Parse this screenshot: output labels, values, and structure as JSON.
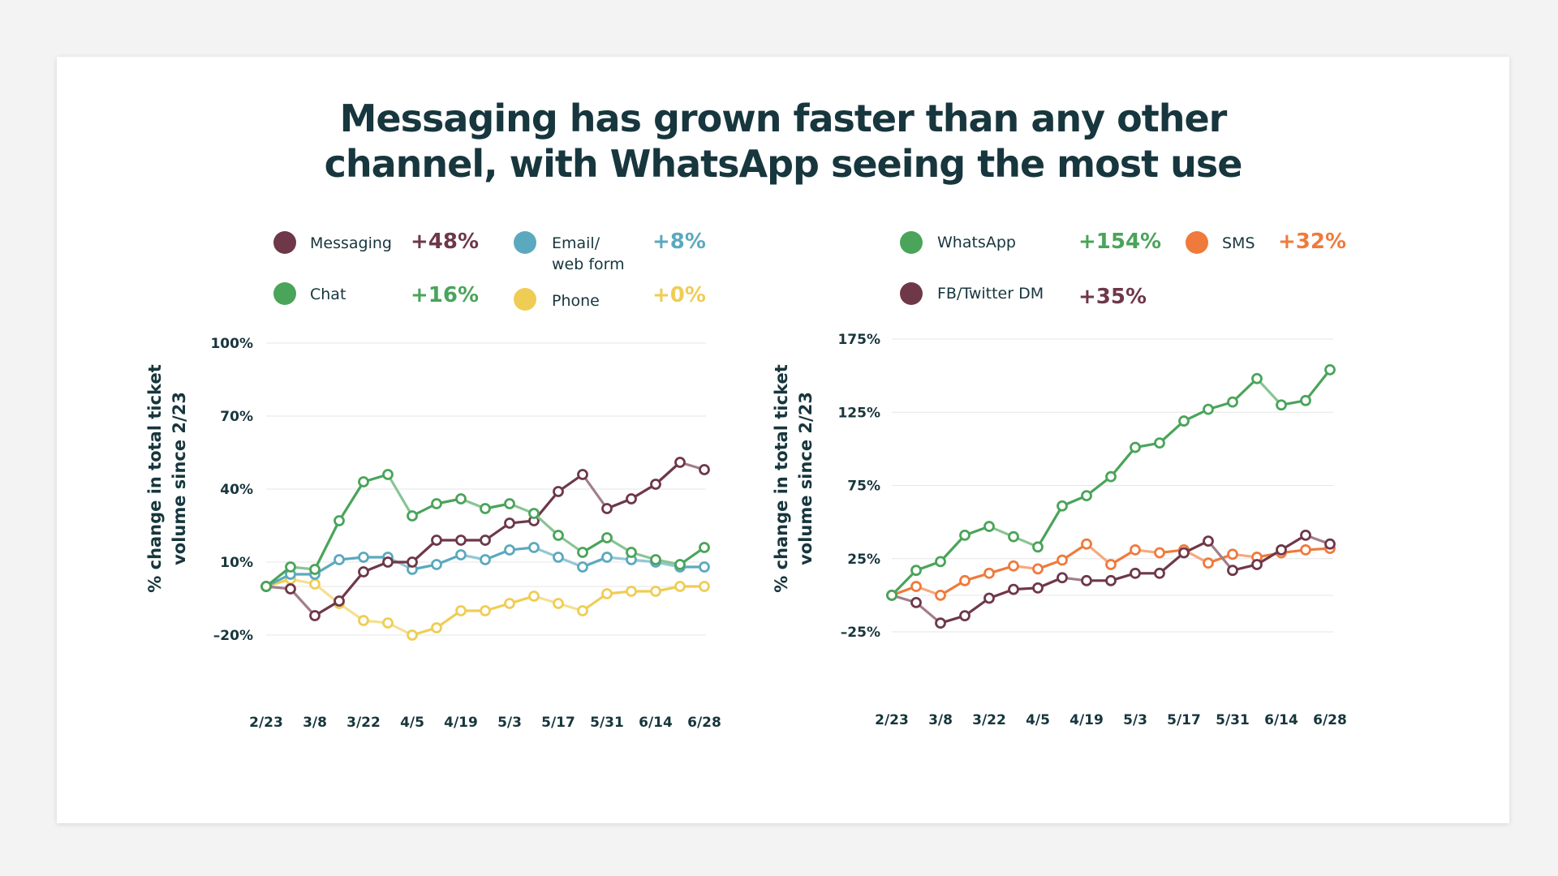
{
  "title": {
    "line1": "Messaging has grown faster than any other",
    "line2": "channel, with WhatsApp seeing the most use"
  },
  "chart_data": [
    {
      "type": "line",
      "ylabel_line1": "% change in total ticket",
      "ylabel_line2": "volume since 2/23",
      "ylim": [
        -20,
        100
      ],
      "yticks": [
        100,
        70,
        40,
        10,
        -20
      ],
      "ytick_labels": [
        "100%",
        "70%",
        "40%",
        "10%",
        "–20%"
      ],
      "x": [
        "2/23",
        "3/1",
        "3/8",
        "3/15",
        "3/22",
        "3/29",
        "4/5",
        "4/12",
        "4/19",
        "4/26",
        "5/3",
        "5/10",
        "5/17",
        "5/24",
        "5/31",
        "6/7",
        "6/14",
        "6/21",
        "6/28"
      ],
      "xtick_labels": [
        "2/23",
        "3/8",
        "3/22",
        "4/5",
        "4/19",
        "5/3",
        "5/17",
        "5/31",
        "6/14",
        "6/28"
      ],
      "grid": true,
      "series": [
        {
          "name": "Phone",
          "pct": "+0%",
          "color": "#efcd55",
          "values": [
            0,
            3,
            1,
            -7,
            -14,
            -15,
            -20,
            -17,
            -10,
            -10,
            -7,
            -4,
            -7,
            -10,
            -3,
            -2,
            -2,
            0,
            0
          ]
        },
        {
          "name": "Email/ web form",
          "name_line1": "Email/",
          "name_line2": "web form",
          "pct": "+8%",
          "color": "#5ba9bf",
          "values": [
            0,
            5,
            5,
            11,
            12,
            12,
            7,
            9,
            13,
            11,
            15,
            16,
            12,
            8,
            12,
            11,
            10,
            8,
            8
          ]
        },
        {
          "name": "Messaging",
          "pct": "+48%",
          "color": "#6e3849",
          "values": [
            0,
            -1,
            -12,
            -6,
            6,
            10,
            10,
            19,
            19,
            19,
            26,
            27,
            39,
            46,
            32,
            36,
            42,
            51,
            48
          ]
        },
        {
          "name": "Chat",
          "pct": "+16%",
          "color": "#4aa45a",
          "values": [
            0,
            8,
            7,
            27,
            43,
            46,
            29,
            34,
            36,
            32,
            34,
            30,
            21,
            14,
            20,
            14,
            11,
            9,
            16
          ]
        }
      ]
    },
    {
      "type": "line",
      "ylabel_line1": "% change in total ticket",
      "ylabel_line2": "volume since 2/23",
      "ylim": [
        -25,
        175
      ],
      "yticks": [
        175,
        125,
        75,
        25,
        -25
      ],
      "ytick_labels": [
        "175%",
        "125%",
        "75%",
        "25%",
        "–25%"
      ],
      "x": [
        "2/23",
        "3/1",
        "3/8",
        "3/15",
        "3/22",
        "3/29",
        "4/5",
        "4/12",
        "4/19",
        "4/26",
        "5/3",
        "5/10",
        "5/17",
        "5/24",
        "5/31",
        "6/7",
        "6/14",
        "6/21",
        "6/28"
      ],
      "xtick_labels": [
        "2/23",
        "3/8",
        "3/22",
        "4/5",
        "4/19",
        "5/3",
        "5/17",
        "5/31",
        "6/14",
        "6/28"
      ],
      "grid": true,
      "series": [
        {
          "name": "SMS",
          "pct": "+32%",
          "color": "#f07a3c",
          "values": [
            0,
            6,
            0,
            10,
            15,
            20,
            18,
            24,
            35,
            21,
            31,
            29,
            31,
            22,
            28,
            26,
            29,
            31,
            32
          ]
        },
        {
          "name": "FB/Twitter DM",
          "pct": "+35%",
          "color": "#6e3849",
          "values": [
            0,
            -5,
            -19,
            -14,
            -2,
            4,
            5,
            12,
            10,
            10,
            15,
            15,
            29,
            37,
            17,
            21,
            31,
            41,
            35
          ]
        },
        {
          "name": "WhatsApp",
          "pct": "+154%",
          "color": "#4aa45a",
          "values": [
            0,
            17,
            23,
            41,
            47,
            40,
            33,
            61,
            68,
            81,
            101,
            104,
            119,
            127,
            132,
            148,
            130,
            133,
            154
          ]
        }
      ]
    }
  ]
}
